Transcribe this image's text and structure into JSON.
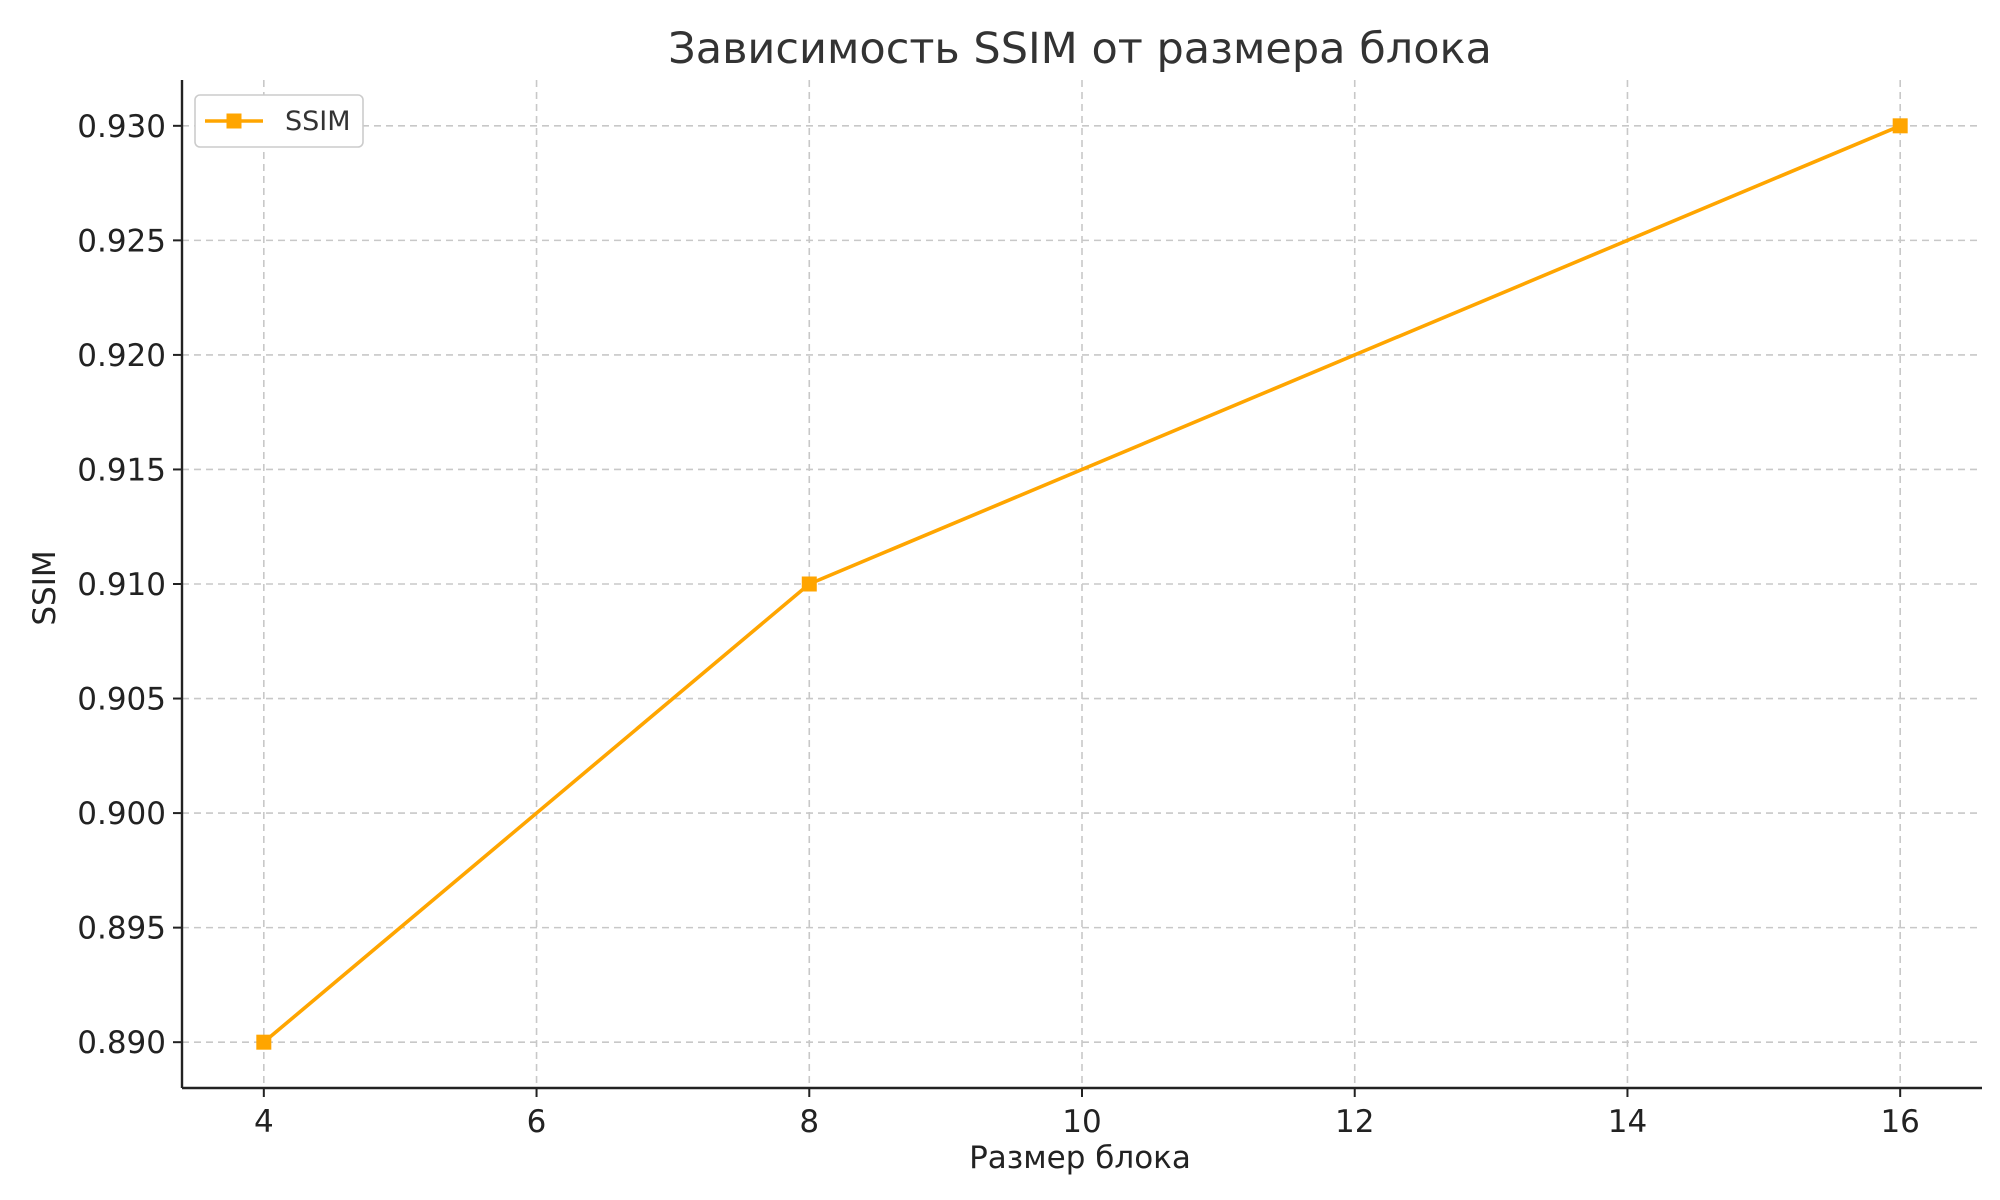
{
  "chart_data": {
    "type": "line",
    "title": "Зависимость SSIM от размера блока",
    "xlabel": "Размер блока",
    "ylabel": "SSIM",
    "x": [
      4,
      8,
      16
    ],
    "series": [
      {
        "name": "SSIM",
        "values": [
          0.89,
          0.91,
          0.93
        ],
        "color": "#ffa500",
        "marker": "square"
      }
    ],
    "xlim": [
      3.4,
      16.6
    ],
    "ylim": [
      0.888,
      0.932
    ],
    "xticks": [
      4,
      6,
      8,
      10,
      12,
      14,
      16
    ],
    "xtick_labels": [
      "4",
      "6",
      "8",
      "10",
      "12",
      "14",
      "16"
    ],
    "yticks": [
      0.89,
      0.895,
      0.9,
      0.905,
      0.91,
      0.915,
      0.92,
      0.925,
      0.93
    ],
    "ytick_labels": [
      "0.890",
      "0.895",
      "0.900",
      "0.905",
      "0.910",
      "0.915",
      "0.920",
      "0.925",
      "0.930"
    ],
    "grid": true,
    "legend": "top-left"
  }
}
